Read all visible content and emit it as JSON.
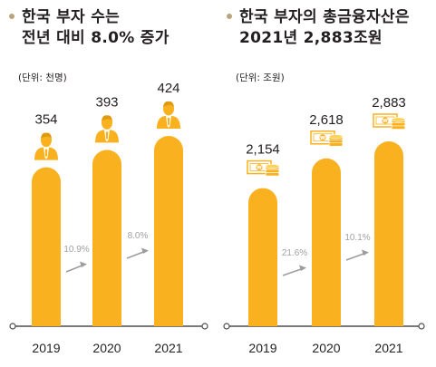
{
  "colors": {
    "bar": "#f9b11f",
    "axis": "#4d4d4d",
    "arrow": "#9d9d9d",
    "growth_text": "#a0a0a0",
    "bullet": "#b8a57e",
    "text": "#231f20"
  },
  "icons": {
    "left_chart": "person-icon",
    "right_chart": "money-coins-icon"
  },
  "chart_data": [
    {
      "type": "bar",
      "title_lines": [
        "한국 부자 수는",
        "전년 대비 8.0% 증가"
      ],
      "unit": "(단위: 천명)",
      "categories": [
        "2019",
        "2020",
        "2021"
      ],
      "values": [
        354,
        393,
        424
      ],
      "value_labels": [
        "354",
        "393",
        "424"
      ],
      "growth_labels": [
        "10.9%",
        "8.0%"
      ]
    },
    {
      "type": "bar",
      "title_lines": [
        "한국 부자의 총금융자산은",
        "2021년 2,883조원"
      ],
      "unit": "(단위: 조원)",
      "categories": [
        "2019",
        "2020",
        "2021"
      ],
      "values": [
        2154,
        2618,
        2883
      ],
      "value_labels": [
        "2,154",
        "2,618",
        "2,883"
      ],
      "growth_labels": [
        "21.6%",
        "10.1%"
      ]
    }
  ]
}
